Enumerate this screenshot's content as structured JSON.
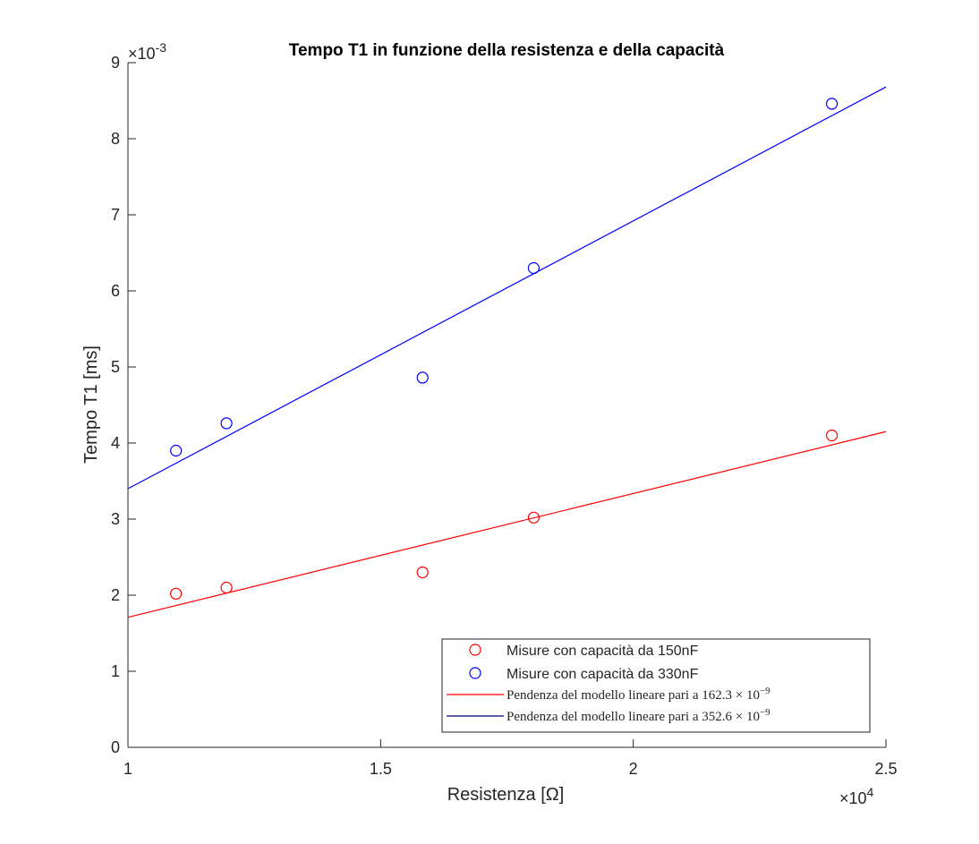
{
  "chart_data": {
    "type": "scatter",
    "title": "Tempo T1 in funzione della resistenza e della capacità",
    "xlabel": "Resistenza [Ω]",
    "ylabel": "Tempo T1 [ms]",
    "xlim": [
      10000,
      25000
    ],
    "ylim": [
      0,
      0.009
    ],
    "x_exponent_label": {
      "base": "×10",
      "exp": "4"
    },
    "y_exponent_label": {
      "base": "×10",
      "exp": "-3"
    },
    "x_ticks": [
      10000,
      15000,
      20000,
      25000
    ],
    "x_tick_labels": [
      "1",
      "1.5",
      "2",
      "2.5"
    ],
    "y_ticks": [
      0,
      0.001,
      0.002,
      0.003,
      0.004,
      0.005,
      0.006,
      0.007,
      0.008,
      0.009
    ],
    "y_tick_labels": [
      "0",
      "1",
      "2",
      "3",
      "4",
      "5",
      "6",
      "7",
      "8",
      "9"
    ],
    "grid": false,
    "legend_position": "bottom-right",
    "series": [
      {
        "name": "Misure con capacità da 150nF",
        "kind": "scatter",
        "marker": "circle",
        "color": "#ff0000",
        "x": [
          10950,
          11950,
          15830,
          18030,
          23930
        ],
        "y": [
          0.00202,
          0.0021,
          0.0023,
          0.00302,
          0.0041
        ]
      },
      {
        "name": "Misure con capacità da 330nF",
        "kind": "scatter",
        "marker": "circle",
        "color": "#0000ff",
        "x": [
          10950,
          11950,
          15830,
          18030,
          23930
        ],
        "y": [
          0.0039,
          0.00426,
          0.00486,
          0.0063,
          0.00846
        ]
      },
      {
        "name": "Pendenza del modello lineare pari a 162.3 × 10⁻⁹",
        "legend_parts": [
          "Pendenza del modello lineare pari a 162.3",
          " × 10",
          "−9"
        ],
        "kind": "line",
        "color": "#ff0000",
        "x": [
          10000,
          25000
        ],
        "y": [
          0.00171,
          0.00415
        ]
      },
      {
        "name": "Pendenza del modello lineare pari a 352.6 × 10⁻⁹",
        "legend_parts": [
          "Pendenza del modello lineare pari a 352.6",
          " × 10",
          "−9"
        ],
        "kind": "line",
        "color": "#000080",
        "plot_color": "#0000ff",
        "x": [
          10000,
          25000
        ],
        "y": [
          0.0034,
          0.00868
        ]
      }
    ]
  }
}
